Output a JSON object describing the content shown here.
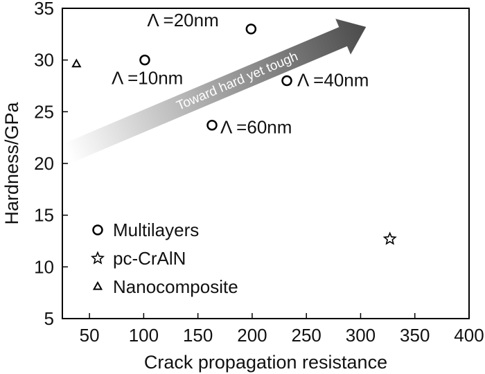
{
  "chart_data": {
    "type": "scatter",
    "xlabel": "Crack propagation resistance",
    "ylabel": "Hardness/GPa",
    "xlim": [
      25,
      400
    ],
    "ylim": [
      5,
      35
    ],
    "xticks": [
      50,
      100,
      150,
      200,
      250,
      300,
      350,
      400
    ],
    "yticks": [
      5,
      10,
      15,
      20,
      25,
      30,
      35
    ],
    "grid": false,
    "legend_position": "bottom-left",
    "series": [
      {
        "name": "Multilayers",
        "marker": "circle",
        "points": [
          {
            "x": 101,
            "y": 30.0,
            "label": "Λ =10nm"
          },
          {
            "x": 199,
            "y": 33.0,
            "label": "Λ =20nm"
          },
          {
            "x": 232,
            "y": 28.0,
            "label": "Λ =40nm"
          },
          {
            "x": 163,
            "y": 23.7,
            "label": "Λ =60nm"
          }
        ]
      },
      {
        "name": "pc-CrAlN",
        "marker": "star",
        "points": [
          {
            "x": 327,
            "y": 12.7
          }
        ]
      },
      {
        "name": "Nanocomposite",
        "marker": "triangle",
        "points": [
          {
            "x": 38,
            "y": 29.6
          }
        ]
      }
    ],
    "annotations": {
      "arrow_text": "Toward hard yet tough",
      "arrow_from": {
        "x": 30,
        "y": 21
      },
      "arrow_to": {
        "x": 305,
        "y": 33.2
      }
    }
  }
}
